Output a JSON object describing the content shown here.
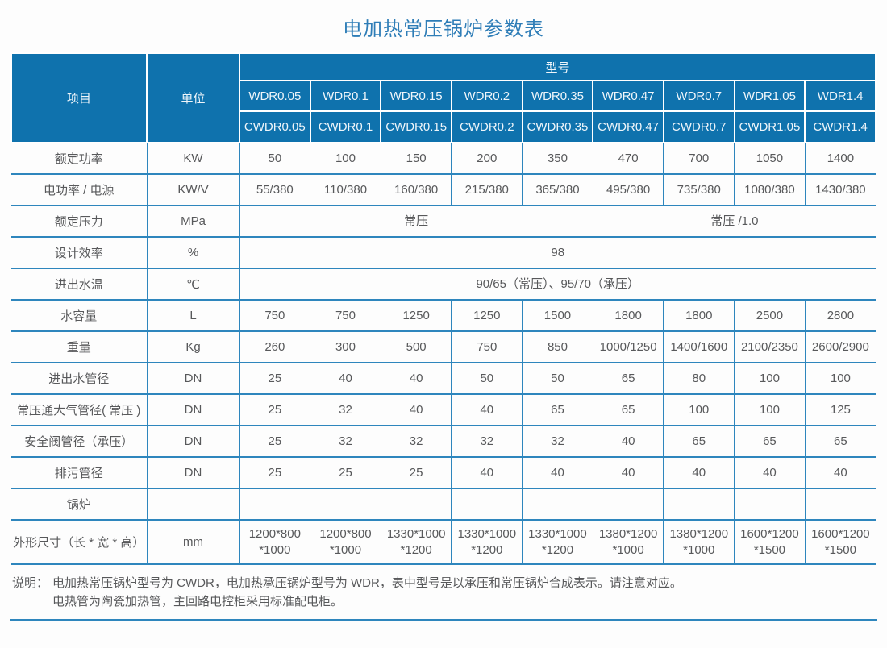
{
  "title": "电加热常压锅炉参数表",
  "colors": {
    "header_bg": "#0f72ad",
    "border": "#2e86bd",
    "title": "#2e7db7",
    "text": "#58595b"
  },
  "table": {
    "item_header": "项目",
    "unit_header": "单位",
    "model_header": "型号",
    "models_wdr": [
      "WDR0.05",
      "WDR0.1",
      "WDR0.15",
      "WDR0.2",
      "WDR0.35",
      "WDR0.47",
      "WDR0.7",
      "WDR1.05",
      "WDR1.4"
    ],
    "models_cwdr": [
      "CWDR0.05",
      "CWDR0.1",
      "CWDR0.15",
      "CWDR0.2",
      "CWDR0.35",
      "CWDR0.47",
      "CWDR0.7",
      "CWDR1.05",
      "CWDR1.4"
    ],
    "rows": [
      {
        "label": "额定功率",
        "unit": "KW",
        "values": [
          "50",
          "100",
          "150",
          "200",
          "350",
          "470",
          "700",
          "1050",
          "1400"
        ]
      },
      {
        "label": "电功率 / 电源",
        "unit": "KW/V",
        "values": [
          "55/380",
          "110/380",
          "160/380",
          "215/380",
          "365/380",
          "495/380",
          "735/380",
          "1080/380",
          "1430/380"
        ]
      },
      {
        "label": "额定压力",
        "unit": "MPa",
        "spans": [
          {
            "text": "常压",
            "cols": 5
          },
          {
            "text": "常压 /1.0",
            "cols": 4
          }
        ]
      },
      {
        "label": "设计效率",
        "unit": "%",
        "spans": [
          {
            "text": "98",
            "cols": 9
          }
        ]
      },
      {
        "label": "进出水温",
        "unit": "℃",
        "spans": [
          {
            "text": "90/65（常压）、95/70（承压）",
            "cols": 9
          }
        ]
      },
      {
        "label": "水容量",
        "unit": "L",
        "values": [
          "750",
          "750",
          "1250",
          "1250",
          "1500",
          "1800",
          "1800",
          "2500",
          "2800"
        ]
      },
      {
        "label": "重量",
        "unit": "Kg",
        "values": [
          "260",
          "300",
          "500",
          "750",
          "850",
          "1000/1250",
          "1400/1600",
          "2100/2350",
          "2600/2900"
        ]
      },
      {
        "label": "进出水管径",
        "unit": "DN",
        "values": [
          "25",
          "40",
          "40",
          "50",
          "50",
          "65",
          "80",
          "100",
          "100"
        ]
      },
      {
        "label": "常压通大气管径( 常压 )",
        "unit": "DN",
        "values": [
          "25",
          "32",
          "40",
          "40",
          "65",
          "65",
          "100",
          "100",
          "125"
        ]
      },
      {
        "label": "安全阀管径（承压）",
        "unit": "DN",
        "values": [
          "25",
          "32",
          "32",
          "32",
          "32",
          "40",
          "65",
          "65",
          "65"
        ]
      },
      {
        "label": "排污管径",
        "unit": "DN",
        "values": [
          "25",
          "25",
          "25",
          "40",
          "40",
          "40",
          "40",
          "40",
          "40"
        ]
      },
      {
        "label": "锅炉",
        "unit": "",
        "values": [
          "",
          "",
          "",
          "",
          "",
          "",
          "",
          "",
          ""
        ]
      },
      {
        "label": "外形尺寸（长 * 宽 * 高）",
        "unit": "mm",
        "tall": true,
        "values": [
          "1200*800\n*1000",
          "1200*800\n*1000",
          "1330*1000\n*1200",
          "1330*1000\n*1200",
          "1330*1000\n*1200",
          "1380*1200\n*1000",
          "1380*1200\n*1000",
          "1600*1200\n*1500",
          "1600*1200\n*1500"
        ]
      }
    ],
    "notes": {
      "prefix": "说明：",
      "line1": "电加热常压锅炉型号为 CWDR，电加热承压锅炉型号为 WDR，表中型号是以承压和常压锅炉合成表示。请注意对应。",
      "line2": "电热管为陶瓷加热管，主回路电控柜采用标准配电柜。"
    }
  }
}
